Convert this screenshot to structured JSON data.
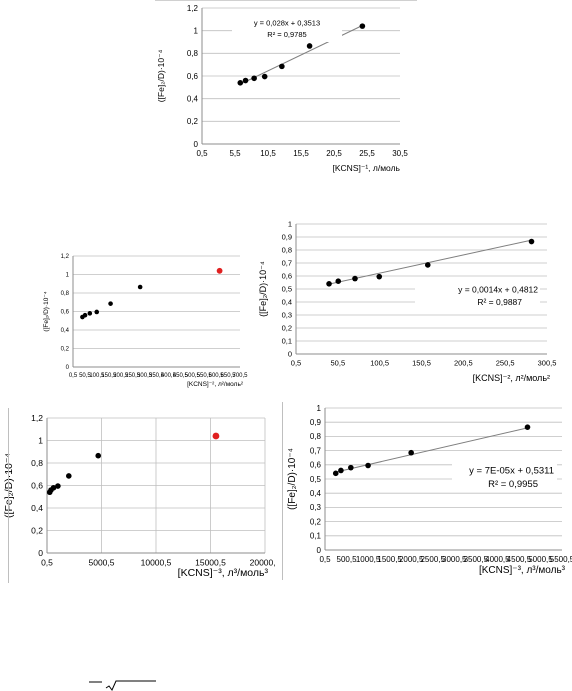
{
  "chart_data": [
    {
      "type": "scatter",
      "xlabel": "[KCNS]⁻¹, л/моль",
      "ylabel": "([Fe]₂/D)·10⁻⁴",
      "xlim": [
        0.5,
        30.5
      ],
      "ylim": [
        0,
        1.2
      ],
      "xticks": [
        "0,5",
        "5,5",
        "10,5",
        "15,5",
        "20,5",
        "25,5",
        "30,5"
      ],
      "yticks": [
        "0",
        "0,2",
        "0,4",
        "0,6",
        "0,8",
        "1",
        "1,2"
      ],
      "grid": "horizontal",
      "points": [
        {
          "x": 6.3,
          "y": 0.54,
          "color": "#000000"
        },
        {
          "x": 7.1,
          "y": 0.56,
          "color": "#000000"
        },
        {
          "x": 8.4,
          "y": 0.58,
          "color": "#000000"
        },
        {
          "x": 10.0,
          "y": 0.595,
          "color": "#000000"
        },
        {
          "x": 12.6,
          "y": 0.685,
          "color": "#000000"
        },
        {
          "x": 16.8,
          "y": 0.865,
          "color": "#000000"
        },
        {
          "x": 24.8,
          "y": 1.04,
          "color": "#000000"
        }
      ],
      "trendline": {
        "slope": 0.028,
        "intercept": 0.3513,
        "x_from": 6.3,
        "x_to": 24.8
      },
      "equation": "y = 0,028x + 0,3513",
      "r2": "R² = 0,9785",
      "annotation_position": "top-center"
    },
    {
      "type": "scatter",
      "xlabel": "[KCNS]⁻², л²/моль²",
      "ylabel": "([Fe]₂/D)·10⁻⁴",
      "xlim": [
        0.5,
        700.5
      ],
      "ylim": [
        0,
        1.2
      ],
      "xticks": [
        "0,5",
        "50,5",
        "100,5",
        "150,5",
        "200,5",
        "250,5",
        "300,5",
        "350,5",
        "400,5",
        "450,5",
        "500,5",
        "550,5",
        "600,5",
        "650,5",
        "700,5"
      ],
      "yticks": [
        "0",
        "0,2",
        "0,4",
        "0,6",
        "0,8",
        "1",
        "1,2"
      ],
      "grid": "horizontal",
      "points": [
        {
          "x": 40,
          "y": 0.54,
          "color": "#000000"
        },
        {
          "x": 51,
          "y": 0.56,
          "color": "#000000"
        },
        {
          "x": 71,
          "y": 0.58,
          "color": "#000000"
        },
        {
          "x": 100,
          "y": 0.595,
          "color": "#000000"
        },
        {
          "x": 158,
          "y": 0.685,
          "color": "#000000"
        },
        {
          "x": 282,
          "y": 0.865,
          "color": "#000000"
        },
        {
          "x": 615,
          "y": 1.04,
          "color": "#e02020"
        }
      ]
    },
    {
      "type": "scatter",
      "xlabel": "[KCNS]⁻², л²/моль²",
      "ylabel": "([Fe]₂/D)·10⁻⁴",
      "xlim": [
        0.5,
        300.5
      ],
      "ylim": [
        0,
        1
      ],
      "xticks": [
        "0,5",
        "50,5",
        "100,5",
        "150,5",
        "200,5",
        "250,5",
        "300,5"
      ],
      "yticks": [
        "0",
        "0,1",
        "0,2",
        "0,3",
        "0,4",
        "0,5",
        "0,6",
        "0,7",
        "0,8",
        "0,9",
        "1"
      ],
      "grid": "horizontal",
      "points": [
        {
          "x": 40,
          "y": 0.54,
          "color": "#000000"
        },
        {
          "x": 51,
          "y": 0.56,
          "color": "#000000"
        },
        {
          "x": 71,
          "y": 0.58,
          "color": "#000000"
        },
        {
          "x": 100,
          "y": 0.595,
          "color": "#000000"
        },
        {
          "x": 158,
          "y": 0.685,
          "color": "#000000"
        },
        {
          "x": 282,
          "y": 0.865,
          "color": "#000000"
        }
      ],
      "trendline": {
        "slope": 0.0014,
        "intercept": 0.4812,
        "x_from": 40,
        "x_to": 282
      },
      "equation": "y = 0,0014x + 0,4812",
      "r2": "R² = 0,9887",
      "annotation_position": "right"
    },
    {
      "type": "scatter",
      "xlabel": "[KCNS]⁻³, л³/моль³",
      "ylabel": "([Fe]₂/D)·10⁻⁴",
      "xlim": [
        0.5,
        20000.5
      ],
      "ylim": [
        0,
        1.2
      ],
      "xticks": [
        "0,5",
        "5000,5",
        "10000,5",
        "15000,5",
        "20000,5"
      ],
      "yticks": [
        "0",
        "0,2",
        "0,4",
        "0,6",
        "0,8",
        "1",
        "1,2"
      ],
      "grid": "both",
      "points": [
        {
          "x": 250,
          "y": 0.54,
          "color": "#000000"
        },
        {
          "x": 370,
          "y": 0.56,
          "color": "#000000"
        },
        {
          "x": 600,
          "y": 0.58,
          "color": "#000000"
        },
        {
          "x": 1000,
          "y": 0.595,
          "color": "#000000"
        },
        {
          "x": 2000,
          "y": 0.685,
          "color": "#000000"
        },
        {
          "x": 4700,
          "y": 0.865,
          "color": "#000000"
        },
        {
          "x": 15500,
          "y": 1.04,
          "color": "#e02020"
        }
      ]
    },
    {
      "type": "scatter",
      "xlabel": "[KCNS]⁻³, л³/моль³",
      "ylabel": "([Fe]₂/D)·10⁻⁴",
      "xlim": [
        0.5,
        5500.5
      ],
      "ylim": [
        0,
        1
      ],
      "xticks": [
        "0,5",
        "500,5",
        "1000,5",
        "1500,5",
        "2000,5",
        "2500,5",
        "3000,5",
        "3500,5",
        "4000,5",
        "4500,5",
        "5000,5",
        "5500,5"
      ],
      "yticks": [
        "0",
        "0,1",
        "0,2",
        "0,3",
        "0,4",
        "0,5",
        "0,6",
        "0,7",
        "0,8",
        "0,9",
        "1"
      ],
      "grid": "horizontal",
      "points": [
        {
          "x": 250,
          "y": 0.54,
          "color": "#000000"
        },
        {
          "x": 370,
          "y": 0.56,
          "color": "#000000"
        },
        {
          "x": 600,
          "y": 0.58,
          "color": "#000000"
        },
        {
          "x": 1000,
          "y": 0.595,
          "color": "#000000"
        },
        {
          "x": 2000,
          "y": 0.685,
          "color": "#000000"
        },
        {
          "x": 4700,
          "y": 0.865,
          "color": "#000000"
        }
      ],
      "trendline": {
        "slope": 7e-05,
        "intercept": 0.5311,
        "x_from": 250,
        "x_to": 4700
      },
      "equation": "y = 7E-05x + 0,5311",
      "r2": "R² = 0,9955",
      "annotation_position": "right"
    }
  ],
  "colors": {
    "grid": "#bfbfbf",
    "axis": "#8c8c8c",
    "point": "#000000",
    "outlier": "#e02020",
    "trend": "#7f7f7f"
  }
}
